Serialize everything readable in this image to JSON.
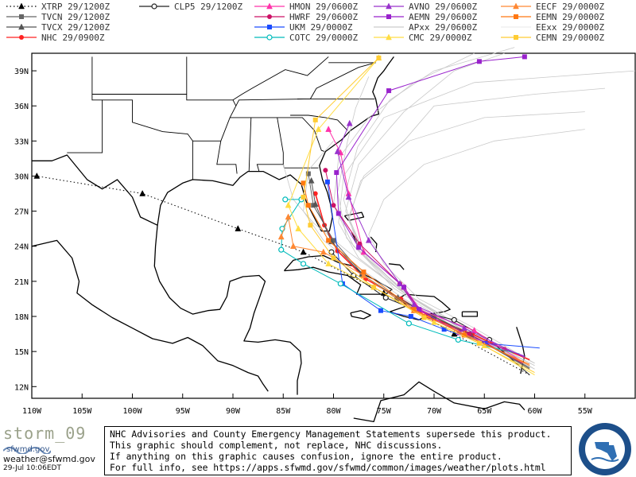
{
  "colors": {
    "XTRP": "#000000",
    "TVCN": "#666666",
    "TVCX": "#555555",
    "NHC": "#ff2222",
    "CLP5": "#222222",
    "HMON": "#ff33aa",
    "HWRF": "#cc1166",
    "UKM": "#1a4cff",
    "COTC": "#00bbbb",
    "AVNO": "#9933cc",
    "AEMN": "#9922cc",
    "APxx": "#cccccc",
    "CMC": "#ffdd44",
    "EECF": "#ff8833",
    "EEMN": "#ff7711",
    "EExx": "#eeeeee",
    "CEMN": "#ffcc33"
  },
  "legend": [
    {
      "model": "XTRP",
      "time": "29/1200Z",
      "marker": "triangle"
    },
    {
      "model": "TVCN",
      "time": "29/1200Z",
      "marker": "square"
    },
    {
      "model": "TVCX",
      "time": "29/1200Z",
      "marker": "triangle"
    },
    {
      "model": "NHC",
      "time": "29/0900Z",
      "marker": "circle"
    },
    {
      "model": "CLP5",
      "time": "29/1200Z",
      "marker": "ring"
    },
    {
      "model": "HMON",
      "time": "29/0600Z",
      "marker": "triangle"
    },
    {
      "model": "HWRF",
      "time": "29/0600Z",
      "marker": "circle"
    },
    {
      "model": "UKM",
      "time": "29/0000Z",
      "marker": "square"
    },
    {
      "model": "COTC",
      "time": "29/0000Z",
      "marker": "ring"
    },
    {
      "model": "AVNO",
      "time": "29/0600Z",
      "marker": "triangle"
    },
    {
      "model": "AEMN",
      "time": "29/0600Z",
      "marker": "square"
    },
    {
      "model": "APxx",
      "time": "29/0600Z",
      "marker": "none"
    },
    {
      "model": "CMC",
      "time": "29/0000Z",
      "marker": "triangle"
    },
    {
      "model": "EECF",
      "time": "29/0000Z",
      "marker": "triangle"
    },
    {
      "model": "EEMN",
      "time": "29/0000Z",
      "marker": "square"
    },
    {
      "model": "EExx",
      "time": "29/0000Z",
      "marker": "none"
    },
    {
      "model": "CEMN",
      "time": "29/0000Z",
      "marker": "square"
    }
  ],
  "chart_data": {
    "type": "scatter",
    "xlim": [
      -110,
      -50
    ],
    "ylim": [
      11,
      40.5
    ],
    "x_ticks": [
      "110W",
      "105W",
      "100W",
      "95W",
      "90W",
      "85W",
      "80W",
      "75W",
      "70W",
      "65W",
      "60W",
      "55W"
    ],
    "y_ticks": [
      "12N",
      "15N",
      "18N",
      "21N",
      "24N",
      "27N",
      "30N",
      "33N",
      "36N",
      "39N"
    ],
    "series": [
      {
        "name": "XTRP",
        "dashed": true,
        "points": [
          [
            -60.5,
            13.0
          ],
          [
            -68,
            16.5
          ],
          [
            -75,
            20
          ],
          [
            -83,
            23.5
          ],
          [
            -89.5,
            25.5
          ],
          [
            -99,
            28.5
          ],
          [
            -109.5,
            30.0
          ]
        ]
      },
      {
        "name": "CLP5",
        "points": [
          [
            -60.5,
            13.0
          ],
          [
            -64.5,
            16.0
          ],
          [
            -68.0,
            17.7
          ],
          [
            -71.7,
            18.5
          ],
          [
            -74.8,
            19.6
          ],
          [
            -78.0,
            21.5
          ],
          [
            -80.2,
            23.5
          ]
        ]
      },
      {
        "name": "NHC",
        "points": [
          [
            -60.5,
            14.3
          ],
          [
            -63,
            15.2
          ],
          [
            -66.2,
            16.5
          ],
          [
            -70.0,
            17.8
          ],
          [
            -73.3,
            19.5
          ],
          [
            -76.8,
            21.2
          ],
          [
            -79.6,
            23.6
          ],
          [
            -80.9,
            25.8
          ],
          [
            -81.8,
            28.5
          ]
        ]
      },
      {
        "name": "TVCN",
        "points": [
          [
            -60.5,
            13.5
          ],
          [
            -66.5,
            16.5
          ],
          [
            -70.0,
            18.0
          ],
          [
            -73.7,
            19.5
          ],
          [
            -77.0,
            21.5
          ],
          [
            -80.0,
            24.5
          ],
          [
            -82.0,
            27.5
          ],
          [
            -82.5,
            30.2
          ]
        ]
      },
      {
        "name": "TVCX",
        "points": [
          [
            -60.5,
            13.6
          ],
          [
            -66.3,
            16.4
          ],
          [
            -70.1,
            18.0
          ],
          [
            -73.6,
            19.6
          ],
          [
            -77.2,
            21.6
          ],
          [
            -80.2,
            24.4
          ],
          [
            -81.8,
            27.6
          ],
          [
            -82.2,
            29.6
          ]
        ]
      },
      {
        "name": "HMON",
        "points": [
          [
            -61.0,
            14.0
          ],
          [
            -66.0,
            16.8
          ],
          [
            -71.3,
            18.5
          ],
          [
            -73.0,
            20.5
          ],
          [
            -77.0,
            23.5
          ],
          [
            -78.5,
            28.5
          ],
          [
            -79.3,
            32.0
          ],
          [
            -80.5,
            34.0
          ]
        ]
      },
      {
        "name": "HWRF",
        "points": [
          [
            -61.2,
            14.0
          ],
          [
            -66.5,
            16.5
          ],
          [
            -71.0,
            18.0
          ],
          [
            -73.4,
            20.8
          ],
          [
            -77.4,
            24.2
          ],
          [
            -80.0,
            27.5
          ],
          [
            -80.8,
            30.5
          ]
        ]
      },
      {
        "name": "UKM",
        "points": [
          [
            -59.5,
            15.3
          ],
          [
            -64.9,
            15.7
          ],
          [
            -69.0,
            16.9
          ],
          [
            -72.3,
            18.0
          ],
          [
            -75.3,
            18.5
          ],
          [
            -79.1,
            20.8
          ],
          [
            -80.6,
            29.5
          ]
        ]
      },
      {
        "name": "COTC",
        "points": [
          [
            -61.5,
            14.8
          ],
          [
            -67.6,
            16.0
          ],
          [
            -72.5,
            17.4
          ],
          [
            -79.3,
            20.8
          ],
          [
            -83.0,
            22.5
          ],
          [
            -85.2,
            23.7
          ],
          [
            -85.1,
            25.5
          ],
          [
            -83.2,
            28.0
          ],
          [
            -84.8,
            28.0
          ]
        ]
      },
      {
        "name": "AVNO",
        "points": [
          [
            -61.0,
            14.5
          ],
          [
            -67.0,
            17.0
          ],
          [
            -72.0,
            19.0
          ],
          [
            -73.4,
            20.8
          ],
          [
            -76.5,
            24.5
          ],
          [
            -78.5,
            28.2
          ],
          [
            -79.6,
            32.1
          ],
          [
            -78.4,
            34.5
          ]
        ]
      },
      {
        "name": "AEMN",
        "points": [
          [
            -61.0,
            14.6
          ],
          [
            -67.5,
            16.6
          ],
          [
            -71.5,
            18.6
          ],
          [
            -73.0,
            20.5
          ],
          [
            -77.5,
            23.9
          ],
          [
            -79.5,
            26.8
          ],
          [
            -79.7,
            30.3
          ],
          [
            -74.5,
            37.3
          ],
          [
            -65.5,
            39.8
          ],
          [
            -61.0,
            40.2
          ]
        ]
      },
      {
        "name": "CMC",
        "points": [
          [
            -60.0,
            13.0
          ],
          [
            -65.0,
            15.5
          ],
          [
            -70.0,
            17.5
          ],
          [
            -76.0,
            20.5
          ],
          [
            -80.5,
            22.5
          ],
          [
            -83.5,
            25.5
          ],
          [
            -84.5,
            27.5
          ],
          [
            -81.5,
            34.0
          ],
          [
            -75.5,
            40.1
          ]
        ]
      },
      {
        "name": "EECF",
        "points": [
          [
            -60.5,
            13.8
          ],
          [
            -67.0,
            16.5
          ],
          [
            -72.0,
            18.5
          ],
          [
            -77.0,
            21.5
          ],
          [
            -81.0,
            23.5
          ],
          [
            -84.0,
            24.0
          ],
          [
            -84.5,
            26.5
          ],
          [
            -85.2,
            24.8
          ]
        ]
      },
      {
        "name": "EEMN",
        "points": [
          [
            -60.5,
            13.9
          ],
          [
            -67.0,
            16.4
          ],
          [
            -72.0,
            18.6
          ],
          [
            -77.0,
            21.8
          ],
          [
            -80.5,
            24.5
          ],
          [
            -82.5,
            27.5
          ],
          [
            -83.0,
            29.4
          ]
        ]
      },
      {
        "name": "CEMN",
        "points": [
          [
            -60.0,
            13.2
          ],
          [
            -65.5,
            15.7
          ],
          [
            -71.0,
            17.9
          ],
          [
            -76.0,
            20.5
          ],
          [
            -80.0,
            23.0
          ],
          [
            -82.3,
            25.8
          ],
          [
            -83.0,
            28.2
          ],
          [
            -81.8,
            34.8
          ],
          [
            -75.5,
            40.1
          ]
        ]
      }
    ]
  },
  "footer": {
    "storm_label": "storm_09",
    "brand": "sfwmd.gov",
    "email": "weather@sfwmd.gov",
    "date": "29-Jul 10:06EDT",
    "disclaimer": [
      "NHC Advisories and County Emergency Management Statements supersede this product.",
      "This graphic should complement, not replace, NHC discussions.",
      "If anything on this graphic causes confusion, ignore the entire product.",
      "For full info, see  https://apps.sfwmd.gov/sfwmd/common/images/weather/plots.html"
    ],
    "seal_text": "SOUTH FLORIDA WATER MANAGEMENT DISTRICT"
  }
}
